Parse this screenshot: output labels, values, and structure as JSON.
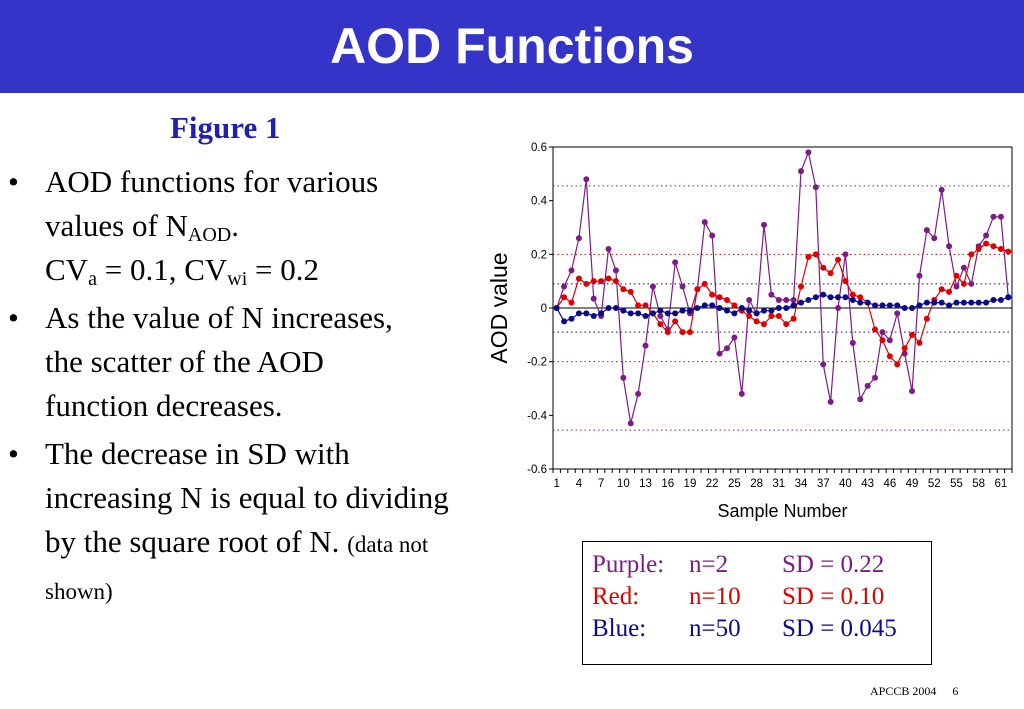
{
  "slide": {
    "title": "AOD Functions",
    "figure_label": "Figure 1",
    "bullets": [
      {
        "line1": "AOD functions for various",
        "line2_pre": "values of N",
        "line2_sub": "AOD",
        "line2_post": ".",
        "line3_a": "CV",
        "line3_a_sub": "a",
        "line3_mid": " = 0.1, CV",
        "line3_b_sub": "wi",
        "line3_end": " = 0.2"
      },
      {
        "text": "As the value of N increases, the scatter of the AOD function decreases."
      },
      {
        "text": "The decrease in SD with increasing N is equal to dividing by the square root of N.",
        "note": "(data not shown)"
      }
    ],
    "legend": [
      {
        "color_name": "Purple:",
        "n": "n=2",
        "sd": "SD = 0.22",
        "color": "#7b1d86"
      },
      {
        "color_name": "Red:",
        "n": "n=10",
        "sd": "SD = 0.10",
        "color": "#e00000"
      },
      {
        "color_name": "Blue:",
        "n": "n=50",
        "sd": "SD = 0.045",
        "color": "#0a0a8a"
      }
    ],
    "footer": {
      "text": "APCCB 2004",
      "page": "6"
    }
  },
  "chart_data": {
    "type": "line",
    "xlabel": "Sample Number",
    "ylabel": "AOD value",
    "ylim": [
      -0.6,
      0.6
    ],
    "yticks": [
      "0.6",
      "0.4",
      "0.2",
      "0",
      "-0.2",
      "-0.4",
      "-0.6"
    ],
    "xtick_labels": [
      "1",
      "4",
      "7",
      "10",
      "13",
      "16",
      "19",
      "22",
      "25",
      "28",
      "31",
      "34",
      "37",
      "40",
      "43",
      "46",
      "49",
      "52",
      "55",
      "58",
      "61"
    ],
    "grid": false,
    "reference_lines": [
      {
        "y": 0.455,
        "color": "#7b1d86"
      },
      {
        "y": -0.455,
        "color": "#7b1d86"
      },
      {
        "y": 0.2,
        "color": "#e00000"
      },
      {
        "y": -0.2,
        "color": "#e00000"
      },
      {
        "y": 0.09,
        "color": "#0a0a8a"
      },
      {
        "y": -0.09,
        "color": "#0a0a8a"
      }
    ],
    "series": [
      {
        "name": "Purple",
        "color": "#7b1d86",
        "values": [
          0.0,
          0.08,
          0.14,
          0.26,
          0.48,
          0.035,
          -0.03,
          0.22,
          0.14,
          -0.26,
          -0.43,
          -0.32,
          -0.14,
          0.08,
          -0.03,
          -0.08,
          0.17,
          0.08,
          -0.02,
          0.07,
          0.32,
          0.27,
          -0.17,
          -0.15,
          -0.11,
          -0.32,
          0.03,
          -0.02,
          0.31,
          0.05,
          0.03,
          0.03,
          0.03,
          0.51,
          0.58,
          0.45,
          -0.21,
          -0.35,
          0.0,
          0.2,
          -0.13,
          -0.34,
          -0.29,
          -0.26,
          -0.09,
          -0.12,
          -0.02,
          -0.17,
          -0.31,
          0.12,
          0.29,
          0.26,
          0.44,
          0.23,
          0.08,
          0.15,
          0.09,
          0.23,
          0.27,
          0.34,
          0.34,
          0.04
        ]
      },
      {
        "name": "Red",
        "color": "#e00000",
        "values": [
          0.0,
          0.04,
          0.02,
          0.11,
          0.09,
          0.1,
          0.1,
          0.11,
          0.1,
          0.07,
          0.06,
          0.01,
          0.01,
          -0.02,
          -0.06,
          -0.09,
          -0.05,
          -0.09,
          -0.09,
          0.07,
          0.09,
          0.05,
          0.04,
          0.03,
          0.01,
          -0.01,
          -0.03,
          -0.05,
          -0.06,
          -0.03,
          -0.03,
          -0.06,
          -0.04,
          0.08,
          0.19,
          0.2,
          0.15,
          0.13,
          0.18,
          0.1,
          0.05,
          0.04,
          0.02,
          -0.08,
          -0.12,
          -0.18,
          -0.21,
          -0.15,
          -0.1,
          -0.13,
          -0.04,
          0.03,
          0.07,
          0.06,
          0.12,
          0.09,
          0.2,
          0.22,
          0.24,
          0.23,
          0.22,
          0.21
        ]
      },
      {
        "name": "Blue",
        "color": "#0a0a8a",
        "values": [
          0.0,
          -0.05,
          -0.04,
          -0.02,
          -0.02,
          -0.03,
          -0.02,
          0.0,
          0.0,
          -0.01,
          -0.02,
          -0.02,
          -0.03,
          -0.02,
          -0.01,
          -0.02,
          -0.02,
          -0.01,
          -0.01,
          0.0,
          0.01,
          0.01,
          0.0,
          -0.01,
          -0.02,
          0.0,
          -0.01,
          -0.02,
          -0.01,
          -0.01,
          0.0,
          0.0,
          0.01,
          0.02,
          0.03,
          0.04,
          0.05,
          0.04,
          0.04,
          0.04,
          0.03,
          0.02,
          0.02,
          0.01,
          0.01,
          0.01,
          0.01,
          0.0,
          0.0,
          0.01,
          0.02,
          0.02,
          0.02,
          0.01,
          0.02,
          0.02,
          0.02,
          0.02,
          0.02,
          0.03,
          0.03,
          0.04
        ]
      }
    ]
  }
}
